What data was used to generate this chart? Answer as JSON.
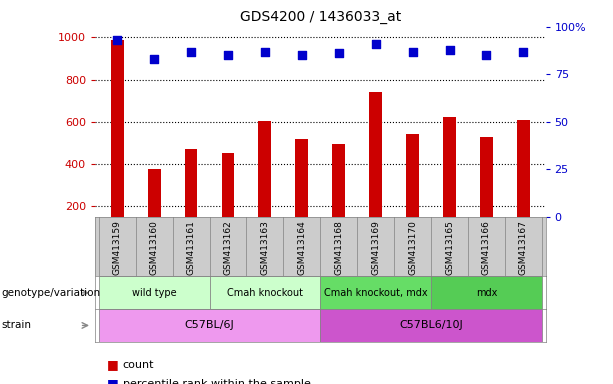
{
  "title": "GDS4200 / 1436033_at",
  "samples": [
    "GSM413159",
    "GSM413160",
    "GSM413161",
    "GSM413162",
    "GSM413163",
    "GSM413164",
    "GSM413168",
    "GSM413169",
    "GSM413170",
    "GSM413165",
    "GSM413166",
    "GSM413167"
  ],
  "counts": [
    990,
    375,
    470,
    455,
    605,
    520,
    495,
    740,
    545,
    625,
    530,
    610
  ],
  "percentiles": [
    93,
    83,
    87,
    85,
    87,
    85,
    86,
    91,
    87,
    88,
    85,
    87
  ],
  "ylim_left": [
    150,
    1050
  ],
  "ylim_right": [
    0,
    100
  ],
  "yticks_left": [
    200,
    400,
    600,
    800,
    1000
  ],
  "yticks_right": [
    0,
    25,
    50,
    75,
    100
  ],
  "bar_color": "#cc0000",
  "dot_color": "#0000cc",
  "genotype_groups": [
    {
      "label": "wild type",
      "start": 0,
      "end": 2,
      "color": "#ccffcc"
    },
    {
      "label": "Cmah knockout",
      "start": 3,
      "end": 5,
      "color": "#ccffcc"
    },
    {
      "label": "Cmah knockout, mdx",
      "start": 6,
      "end": 8,
      "color": "#66dd66"
    },
    {
      "label": "mdx",
      "start": 9,
      "end": 11,
      "color": "#55cc55"
    }
  ],
  "strain_groups": [
    {
      "label": "C57BL/6J",
      "start": 0,
      "end": 5,
      "color": "#ee99ee"
    },
    {
      "label": "C57BL6/10J",
      "start": 6,
      "end": 11,
      "color": "#cc55cc"
    }
  ],
  "bar_width": 0.35,
  "dot_size": 35,
  "left_label_color": "#cc0000",
  "right_label_color": "#0000cc",
  "bg_color": "#cccccc",
  "fig_width": 6.13,
  "fig_height": 3.84,
  "dpi": 100
}
